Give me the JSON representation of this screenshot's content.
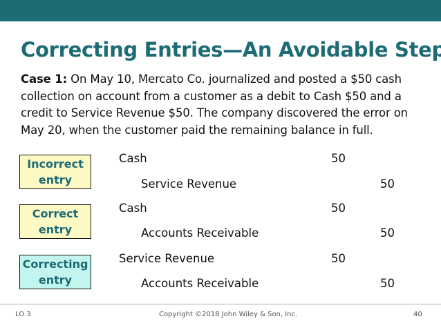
{
  "slide": {
    "title": "Correcting Entries—An Avoidable Step",
    "case_label": "Case 1:",
    "case_body": " On May 10, Mercato Co. journalized and posted a $50 cash collection on account from a customer as a debit to Cash $50 and a credit to Service Revenue $50. The company discovered the error on May 20, when the customer paid the remaining balance in full."
  },
  "entries": [
    {
      "label": "Incorrect entry",
      "debit_account": "Cash",
      "debit_amount": "50",
      "credit_account": "Service Revenue",
      "credit_amount": "50"
    },
    {
      "label": "Correct entry",
      "debit_account": "Cash",
      "debit_amount": "50",
      "credit_account": "Accounts Receivable",
      "credit_amount": "50"
    },
    {
      "label": "Correcting entry",
      "debit_account": "Service Revenue",
      "debit_amount": "50",
      "credit_account": "Accounts Receivable",
      "credit_amount": "50"
    }
  ],
  "footer": {
    "lo": "LO 3",
    "copyright": "Copyright ©2018 John Wiley & Son, Inc.",
    "page_number": "40"
  },
  "colors": {
    "accent": "#1d6b75",
    "box_yellow": "#fcf9c4",
    "box_mint": "#c3f5ef"
  }
}
